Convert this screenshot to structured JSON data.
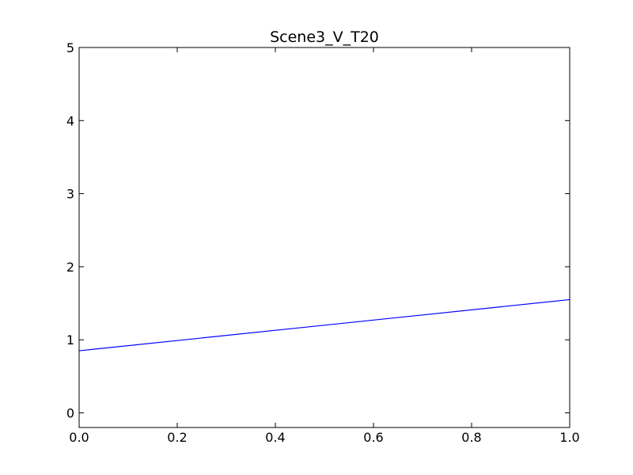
{
  "chart_data": {
    "type": "line",
    "title": "Scene3_V_T20",
    "xlabel": "",
    "ylabel": "",
    "xlim": [
      0.0,
      1.0
    ],
    "ylim": [
      -0.2,
      5.0
    ],
    "xticks": [
      "0.0",
      "0.2",
      "0.4",
      "0.6",
      "0.8",
      "1.0"
    ],
    "yticks": [
      "0",
      "1",
      "2",
      "3",
      "4",
      "5"
    ],
    "grid": false,
    "series": [
      {
        "color": "#0000ff",
        "x": [
          0.0,
          1.0
        ],
        "y": [
          0.85,
          1.55
        ]
      }
    ]
  }
}
